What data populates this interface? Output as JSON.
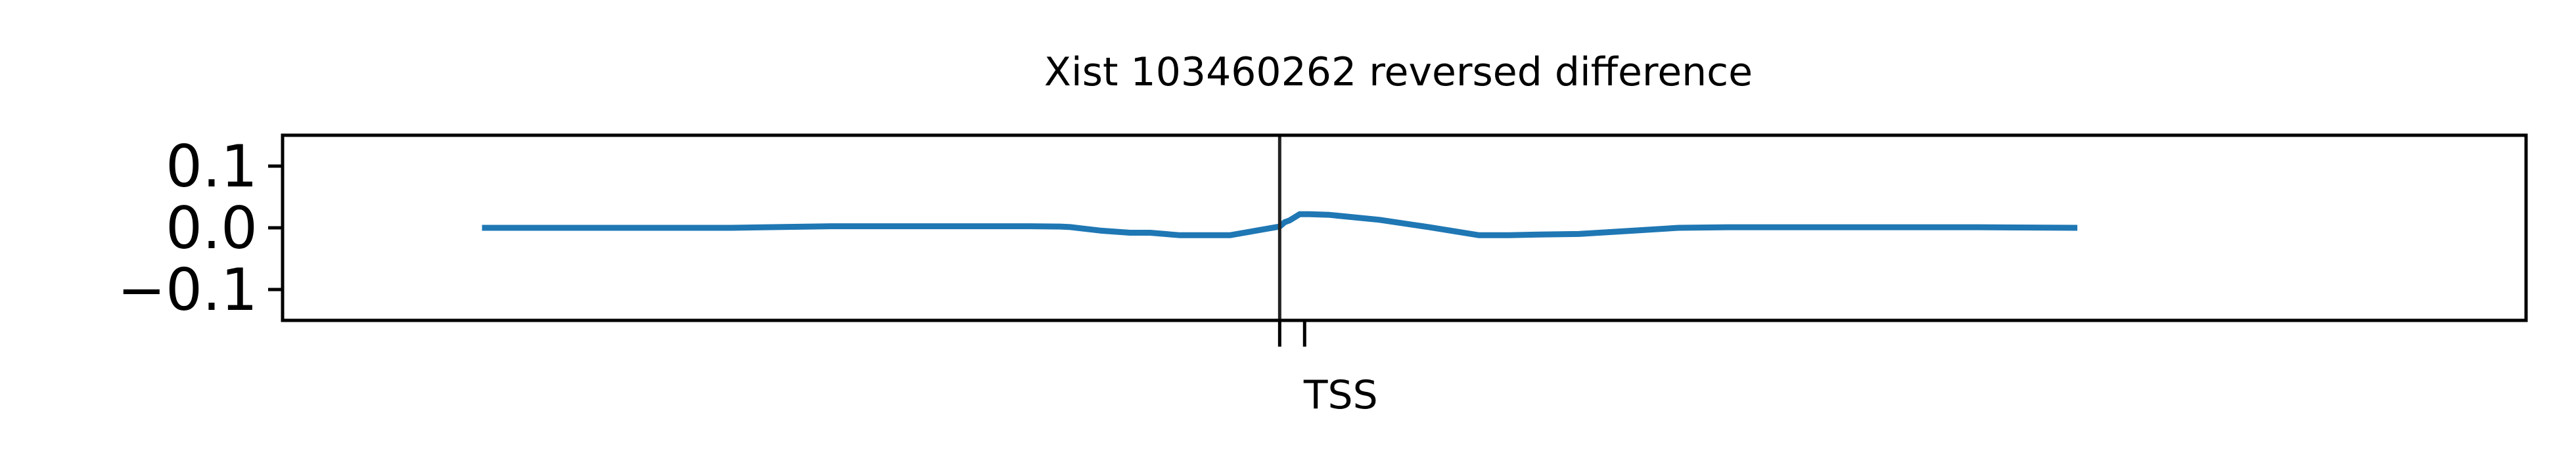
{
  "chart_data": {
    "type": "line",
    "title": "Xist 103460262 reversed difference",
    "xlabel": "",
    "ylabel": "",
    "ylim": [
      -0.15,
      0.15
    ],
    "yticks": [
      {
        "value": 0.1,
        "label": "0.1"
      },
      {
        "value": 0.0,
        "label": "0.0"
      },
      {
        "value": -0.1,
        "label": "−0.1"
      }
    ],
    "xlim": [
      -1000,
      1250
    ],
    "xticks": [
      {
        "value": 0,
        "label": ""
      },
      {
        "value": 25,
        "label": "TSS"
      }
    ],
    "vline": {
      "x": 0,
      "color": "#222222"
    },
    "grid": false,
    "legend": "none",
    "series": [
      {
        "color": "#1f77b4",
        "x": [
          -800,
          -700,
          -550,
          -450,
          -400,
          -350,
          -300,
          -250,
          -220,
          -210,
          -180,
          -150,
          -130,
          -100,
          -50,
          0,
          5,
          10,
          20,
          30,
          50,
          100,
          150,
          200,
          230,
          260,
          300,
          350,
          400,
          450,
          500,
          600,
          700,
          800
        ],
        "y": [
          0.0,
          0.0,
          0.0,
          0.0025,
          0.0025,
          0.0025,
          0.0025,
          0.0025,
          0.002,
          0.0012,
          -0.0045,
          -0.008,
          -0.008,
          -0.012,
          -0.012,
          0.002,
          0.009,
          0.012,
          0.022,
          0.022,
          0.021,
          0.013,
          0.001,
          -0.012,
          -0.012,
          -0.011,
          -0.01,
          -0.005,
          0.0,
          0.001,
          0.001,
          0.001,
          0.001,
          0.0
        ]
      }
    ]
  }
}
